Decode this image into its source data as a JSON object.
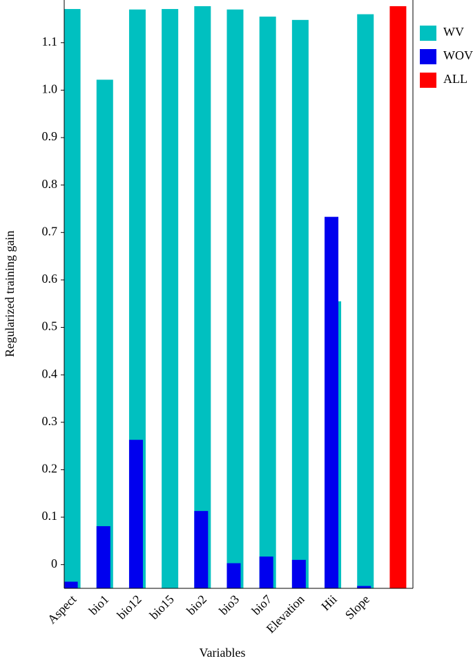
{
  "chart_data": {
    "type": "bar",
    "x_label": "Variables",
    "y_label": "Regularized training gain",
    "categories": [
      "Aspect",
      "bio1",
      "bio12",
      "bio15",
      "bio2",
      "bio3",
      "bio7",
      "Elevation",
      "Hii",
      "Slope",
      null
    ],
    "series": [
      {
        "name": "WV",
        "color": "#00c0c0",
        "values": [
          1.171,
          1.022,
          1.17,
          1.171,
          1.177,
          1.17,
          1.155,
          1.148,
          0.555,
          1.16,
          null
        ]
      },
      {
        "name": "WOV",
        "color": "#0000ee",
        "values": [
          -0.036,
          0.081,
          0.263,
          -0.05,
          0.113,
          0.003,
          0.017,
          0.01,
          0.733,
          -0.045,
          null
        ]
      },
      {
        "name": "ALL",
        "color": "#ff0000",
        "values": [
          null,
          null,
          null,
          null,
          null,
          null,
          null,
          null,
          null,
          null,
          1.177
        ]
      }
    ],
    "ylim": [
      -0.05,
      1.19
    ],
    "yticks": [
      0,
      0.1,
      0.2,
      0.3,
      0.4,
      0.5,
      0.6,
      0.7,
      0.8,
      0.9,
      {
        "value": 1.0,
        "label": "1.0"
      },
      1.1
    ],
    "grid": false,
    "legend": "right"
  }
}
